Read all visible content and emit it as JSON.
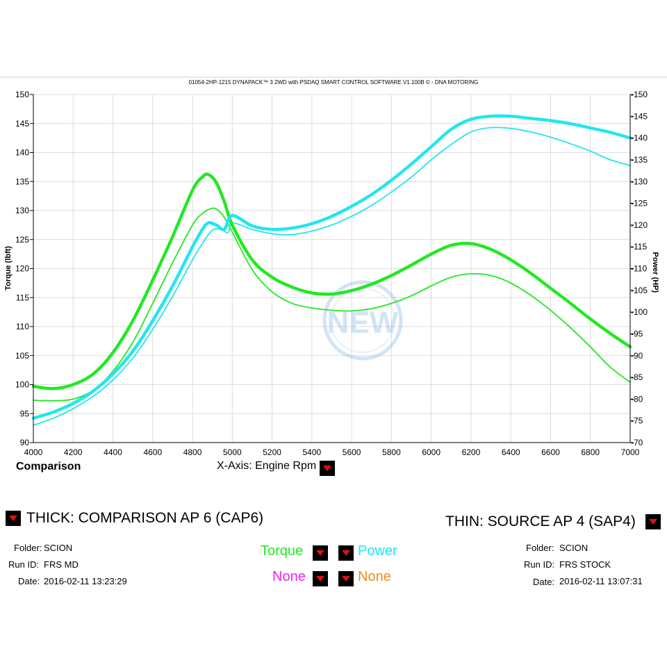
{
  "chart_data": {
    "type": "line",
    "title": "01054-2HP-1215 DYNAPACK™ 3 2WD with PSDAQ SMART CONTROL SOFTWARE V1.100B © - DNA MOTORING",
    "xlabel": "X-Axis: Engine Rpm",
    "ylabel_left": "Torque (lbft)",
    "ylabel_right": "Power (HP)",
    "xlim": [
      4000,
      7000
    ],
    "ylim_left": [
      90,
      150
    ],
    "ylim_right": [
      70,
      150
    ],
    "x_ticks": [
      "4000",
      "4200",
      "4400",
      "4600",
      "4800",
      "5000",
      "5200",
      "5400",
      "5600",
      "5800",
      "6000",
      "6200",
      "6400",
      "6600",
      "6800",
      "7000"
    ],
    "y_ticks_left": [
      "90",
      "95",
      "100",
      "105",
      "110",
      "115",
      "120",
      "125",
      "130",
      "135",
      "140",
      "145",
      "150"
    ],
    "y_ticks_right": [
      "-70",
      "-75",
      "-80",
      "-85",
      "-90",
      "-95",
      "-100",
      "-105",
      "-110",
      "-115",
      "-120",
      "-125",
      "-130",
      "-135",
      "-140",
      "-145",
      "-150"
    ],
    "grid": true,
    "colors": {
      "torque": "#22e822",
      "power": "#22e6ee"
    },
    "series": [
      {
        "name": "Torque",
        "run": "thick",
        "axis": "left",
        "x": [
          4000,
          4100,
          4200,
          4300,
          4400,
          4500,
          4600,
          4700,
          4800,
          4850,
          4880,
          4920,
          4960,
          5000,
          5100,
          5200,
          5300,
          5400,
          5500,
          5600,
          5700,
          5800,
          5900,
          6000,
          6100,
          6200,
          6300,
          6400,
          6500,
          6600,
          6700,
          6800,
          6900,
          7000
        ],
        "y": [
          99.7,
          99.3,
          100.0,
          101.8,
          105.5,
          111.0,
          118.0,
          125.5,
          133.5,
          135.8,
          136.2,
          134.8,
          131.5,
          127.5,
          121.5,
          118.5,
          116.8,
          115.8,
          115.6,
          116.2,
          117.3,
          118.8,
          120.6,
          122.5,
          124.0,
          124.3,
          123.3,
          121.5,
          119.2,
          116.6,
          114.0,
          111.3,
          108.8,
          106.5
        ]
      },
      {
        "name": "Power",
        "run": "thick",
        "axis": "right",
        "x": [
          4000,
          4100,
          4200,
          4300,
          4400,
          4500,
          4600,
          4700,
          4800,
          4850,
          4880,
          4920,
          4960,
          5000,
          5100,
          5200,
          5300,
          5400,
          5500,
          5600,
          5700,
          5800,
          5900,
          6000,
          6100,
          6200,
          6300,
          6400,
          6500,
          6600,
          6700,
          6800,
          6900,
          7000
        ],
        "y": [
          75.6,
          77.0,
          79.0,
          81.8,
          85.8,
          91.0,
          98.0,
          106.0,
          115.0,
          119.0,
          120.5,
          120.0,
          119.0,
          122.2,
          119.8,
          119.0,
          119.3,
          120.3,
          122.0,
          124.3,
          127.0,
          130.3,
          134.0,
          138.0,
          142.0,
          144.3,
          145.0,
          145.0,
          144.5,
          144.0,
          143.3,
          142.3,
          141.3,
          140.0
        ]
      },
      {
        "name": "Torque",
        "run": "thin",
        "axis": "left",
        "x": [
          4000,
          4100,
          4200,
          4300,
          4400,
          4500,
          4600,
          4700,
          4800,
          4850,
          4900,
          4930,
          4960,
          5000,
          5100,
          5200,
          5300,
          5400,
          5500,
          5600,
          5700,
          5800,
          5900,
          6000,
          6100,
          6200,
          6300,
          6400,
          6500,
          6600,
          6700,
          6800,
          6900,
          7000
        ],
        "y": [
          97.3,
          97.2,
          97.5,
          99.0,
          102.3,
          107.3,
          114.0,
          121.0,
          127.5,
          129.5,
          130.4,
          130.0,
          128.8,
          126.3,
          119.8,
          116.0,
          114.0,
          113.2,
          112.8,
          112.7,
          113.1,
          114.0,
          115.3,
          117.0,
          118.5,
          119.1,
          118.8,
          117.5,
          115.4,
          112.8,
          109.8,
          106.5,
          103.0,
          100.4
        ]
      },
      {
        "name": "Power",
        "run": "thin",
        "axis": "right",
        "x": [
          4000,
          4100,
          4200,
          4300,
          4400,
          4500,
          4600,
          4700,
          4800,
          4850,
          4900,
          4940,
          4980,
          5000,
          5100,
          5200,
          5300,
          5400,
          5500,
          5600,
          5700,
          5800,
          5900,
          6000,
          6100,
          6200,
          6300,
          6400,
          6500,
          6600,
          6700,
          6800,
          6900,
          7000
        ],
        "y": [
          74.0,
          75.6,
          77.8,
          80.6,
          84.4,
          89.4,
          96.0,
          103.6,
          112.0,
          115.8,
          118.8,
          119.0,
          118.3,
          120.5,
          119.0,
          118.0,
          117.8,
          118.6,
          120.0,
          122.0,
          124.5,
          127.6,
          131.0,
          135.0,
          138.5,
          141.4,
          142.4,
          142.2,
          141.4,
          140.2,
          138.7,
          137.0,
          135.0,
          133.7
        ]
      }
    ]
  },
  "header": {
    "run_label": "Comparison",
    "xaxis_label": "X-Axis: Engine Rpm"
  },
  "legend": {
    "thick_title": "THICK: COMPARISON AP 6 (CAP6)",
    "thin_title": "THIN: SOURCE AP 4 (SAP4)",
    "selectors": {
      "torque": "Torque",
      "power": "Power",
      "none1": "None",
      "none2": "None"
    },
    "selector_colors": {
      "torque": "#22e822",
      "power": "#22e6ee",
      "none1": "#ee22ee",
      "none2": "#f08a18"
    }
  },
  "left_info": {
    "folder_label": "Folder:",
    "folder": "SCION",
    "runid_label": "Run ID:",
    "runid": "FRS MD",
    "date_label": "Date:",
    "date": "2016-02-11 13:23:29"
  },
  "right_info": {
    "folder_label": "Folder:",
    "folder": "SCION",
    "runid_label": "Run ID:",
    "runid": "FRS STOCK",
    "date_label": "Date:",
    "date": "2016-02-11 13:07:31"
  }
}
